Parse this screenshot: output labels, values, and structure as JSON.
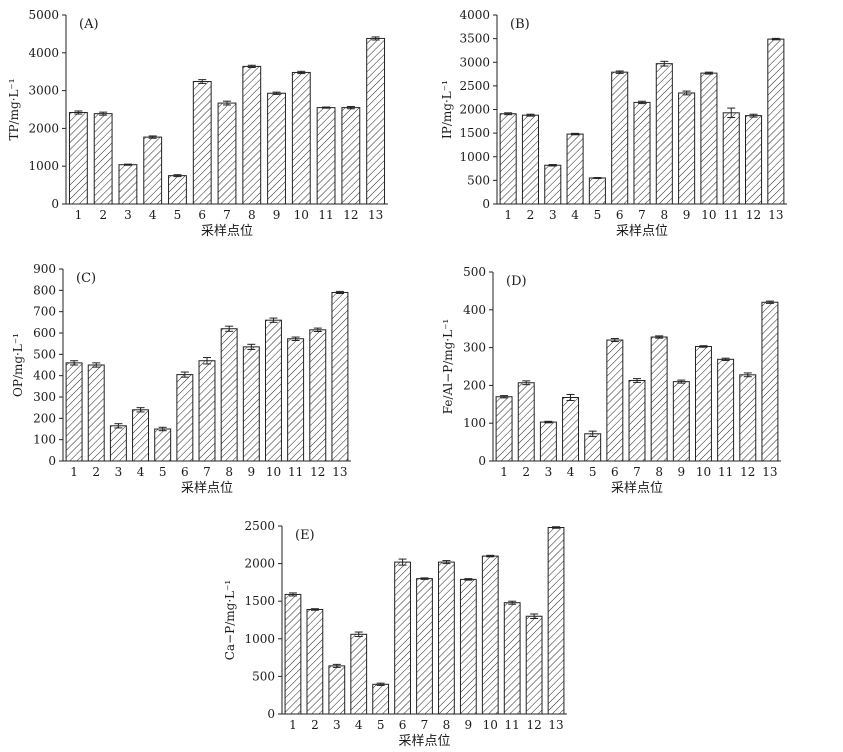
{
  "chart_data": [
    {
      "type": "bar",
      "panel_label": "(A)",
      "categories": [
        "1",
        "2",
        "3",
        "4",
        "5",
        "6",
        "7",
        "8",
        "9",
        "10",
        "11",
        "12",
        "13"
      ],
      "values": [
        2420,
        2390,
        1040,
        1770,
        750,
        3240,
        2670,
        3640,
        2930,
        3480,
        2550,
        2550,
        4380
      ],
      "errors": [
        40,
        40,
        15,
        30,
        25,
        50,
        50,
        30,
        30,
        30,
        15,
        30,
        40
      ],
      "ylim": [
        0,
        5000
      ],
      "yticks": [
        0,
        1000,
        2000,
        3000,
        4000,
        5000
      ],
      "xlabel": "采样点位",
      "ylabel": "TP/mg·L⁻¹",
      "grid": false
    },
    {
      "type": "bar",
      "panel_label": "(B)",
      "categories": [
        "1",
        "2",
        "3",
        "4",
        "5",
        "6",
        "7",
        "8",
        "9",
        "10",
        "11",
        "12",
        "13"
      ],
      "values": [
        1910,
        1880,
        820,
        1480,
        550,
        2790,
        2150,
        2970,
        2350,
        2770,
        1930,
        1870,
        3490
      ],
      "errors": [
        20,
        20,
        15,
        15,
        10,
        25,
        25,
        50,
        40,
        20,
        100,
        30,
        15
      ],
      "ylim": [
        0,
        4000
      ],
      "yticks": [
        0,
        500,
        1000,
        1500,
        2000,
        2500,
        3000,
        3500,
        4000
      ],
      "xlabel": "采样点位",
      "ylabel": "IP/mg·L⁻¹",
      "grid": false
    },
    {
      "type": "bar",
      "panel_label": "(C)",
      "categories": [
        "1",
        "2",
        "3",
        "4",
        "5",
        "6",
        "7",
        "8",
        "9",
        "10",
        "11",
        "12",
        "13"
      ],
      "values": [
        460,
        450,
        165,
        240,
        150,
        405,
        470,
        620,
        535,
        660,
        573,
        615,
        790
      ],
      "errors": [
        10,
        10,
        10,
        10,
        8,
        12,
        15,
        12,
        12,
        10,
        8,
        8,
        5
      ],
      "ylim": [
        0,
        900
      ],
      "yticks": [
        0,
        100,
        200,
        300,
        400,
        500,
        600,
        700,
        800,
        900
      ],
      "xlabel": "采样点位",
      "ylabel": "OP/mg·L⁻¹",
      "grid": false
    },
    {
      "type": "bar",
      "panel_label": "(D)",
      "categories": [
        "1",
        "2",
        "3",
        "4",
        "5",
        "6",
        "7",
        "8",
        "9",
        "10",
        "11",
        "12",
        "13"
      ],
      "values": [
        170,
        207,
        103,
        168,
        72,
        320,
        213,
        328,
        210,
        303,
        269,
        228,
        420
      ],
      "errors": [
        3,
        5,
        2,
        8,
        7,
        4,
        5,
        3,
        4,
        2,
        3,
        5,
        3
      ],
      "ylim": [
        0,
        500
      ],
      "yticks": [
        0,
        100,
        200,
        300,
        400,
        500
      ],
      "xlabel": "采样点位",
      "ylabel": "Fe/Al−P/mg·L⁻¹",
      "grid": false
    },
    {
      "type": "bar",
      "panel_label": "(E)",
      "categories": [
        "1",
        "2",
        "3",
        "4",
        "5",
        "6",
        "7",
        "8",
        "9",
        "10",
        "11",
        "12",
        "13"
      ],
      "values": [
        1590,
        1390,
        640,
        1060,
        395,
        2020,
        1800,
        2020,
        1790,
        2100,
        1480,
        1300,
        2480
      ],
      "errors": [
        20,
        10,
        20,
        30,
        15,
        40,
        10,
        20,
        10,
        10,
        20,
        30,
        10
      ],
      "ylim": [
        0,
        2500
      ],
      "yticks": [
        0,
        500,
        1000,
        1500,
        2000,
        2500
      ],
      "xlabel": "采样点位",
      "ylabel": "Ca−P/mg·L⁻¹",
      "grid": false
    }
  ]
}
